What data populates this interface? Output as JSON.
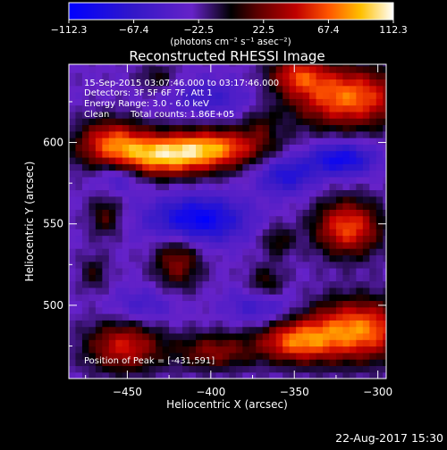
{
  "chart_data": {
    "type": "heatmap",
    "title": "Reconstructed RHESSI Image",
    "xlabel": "Heliocentric X (arcsec)",
    "ylabel": "Heliocentric Y (arcsec)",
    "xlim": [
      -485,
      -295
    ],
    "ylim": [
      455,
      648
    ],
    "x_ticks": [
      -450,
      -400,
      -350,
      -300
    ],
    "y_ticks": [
      500,
      550,
      600
    ],
    "colorbar": {
      "min": -112.3,
      "max": 112.3,
      "ticks": [
        "-112.3",
        "-67.4",
        "-22.5",
        "22.5",
        "67.4",
        "112.3"
      ],
      "unit_label": "(photons cm⁻² s⁻¹ asec⁻²)"
    },
    "annotations": {
      "time_range": "15-Sep-2015 03:07:46.000 to 03:17:46.000",
      "detectors": "Detectors: 3F 5F 6F 7F, Att 1",
      "energy_range": "Energy Range: 3.0 - 6.0 keV",
      "clean": "Clean",
      "total_counts": "Total counts: 1.86E+05",
      "peak": "Position of Peak = [-431,591]"
    },
    "sources": [
      {
        "x": -431,
        "y": 592,
        "sx": 26,
        "sy": 9,
        "value": 112.3
      },
      {
        "x": -395,
        "y": 598,
        "sx": 22,
        "sy": 8,
        "value": 75
      },
      {
        "x": -460,
        "y": 603,
        "sx": 14,
        "sy": 9,
        "value": 65
      },
      {
        "x": -318,
        "y": 628,
        "sx": 24,
        "sy": 13,
        "value": 100
      },
      {
        "x": -348,
        "y": 642,
        "sx": 12,
        "sy": 8,
        "value": 65
      },
      {
        "x": -312,
        "y": 485,
        "sx": 22,
        "sy": 13,
        "value": 105
      },
      {
        "x": -350,
        "y": 478,
        "sx": 16,
        "sy": 9,
        "value": 85
      },
      {
        "x": -318,
        "y": 548,
        "sx": 14,
        "sy": 12,
        "value": 90
      },
      {
        "x": -452,
        "y": 475,
        "sx": 16,
        "sy": 11,
        "value": 75
      },
      {
        "x": -398,
        "y": 472,
        "sx": 16,
        "sy": 8,
        "value": 55
      },
      {
        "x": -420,
        "y": 527,
        "sx": 10,
        "sy": 12,
        "value": 55
      },
      {
        "x": -463,
        "y": 555,
        "sx": 7,
        "sy": 9,
        "value": 40
      },
      {
        "x": -367,
        "y": 513,
        "sx": 8,
        "sy": 8,
        "value": 40
      },
      {
        "x": -360,
        "y": 540,
        "sx": 7,
        "sy": 7,
        "value": 35
      },
      {
        "x": -470,
        "y": 520,
        "sx": 6,
        "sy": 8,
        "value": 30
      },
      {
        "x": -432,
        "y": 640,
        "sx": 8,
        "sy": 6,
        "value": 30
      },
      {
        "x": -370,
        "y": 612,
        "sx": 7,
        "sy": 7,
        "value": 25
      },
      {
        "x": -408,
        "y": 553,
        "sx": 20,
        "sy": 10,
        "value": -80
      },
      {
        "x": -322,
        "y": 590,
        "sx": 14,
        "sy": 7,
        "value": -72
      },
      {
        "x": -355,
        "y": 580,
        "sx": 12,
        "sy": 8,
        "value": -55
      },
      {
        "x": -455,
        "y": 580,
        "sx": 10,
        "sy": 7,
        "value": -40
      },
      {
        "x": -400,
        "y": 628,
        "sx": 18,
        "sy": 8,
        "value": -35
      },
      {
        "x": -370,
        "y": 500,
        "sx": 14,
        "sy": 8,
        "value": -40
      },
      {
        "x": -440,
        "y": 500,
        "sx": 14,
        "sy": 8,
        "value": -30
      }
    ],
    "background": -28
  },
  "footer": {
    "timestamp": "22-Aug-2017 15:30"
  }
}
